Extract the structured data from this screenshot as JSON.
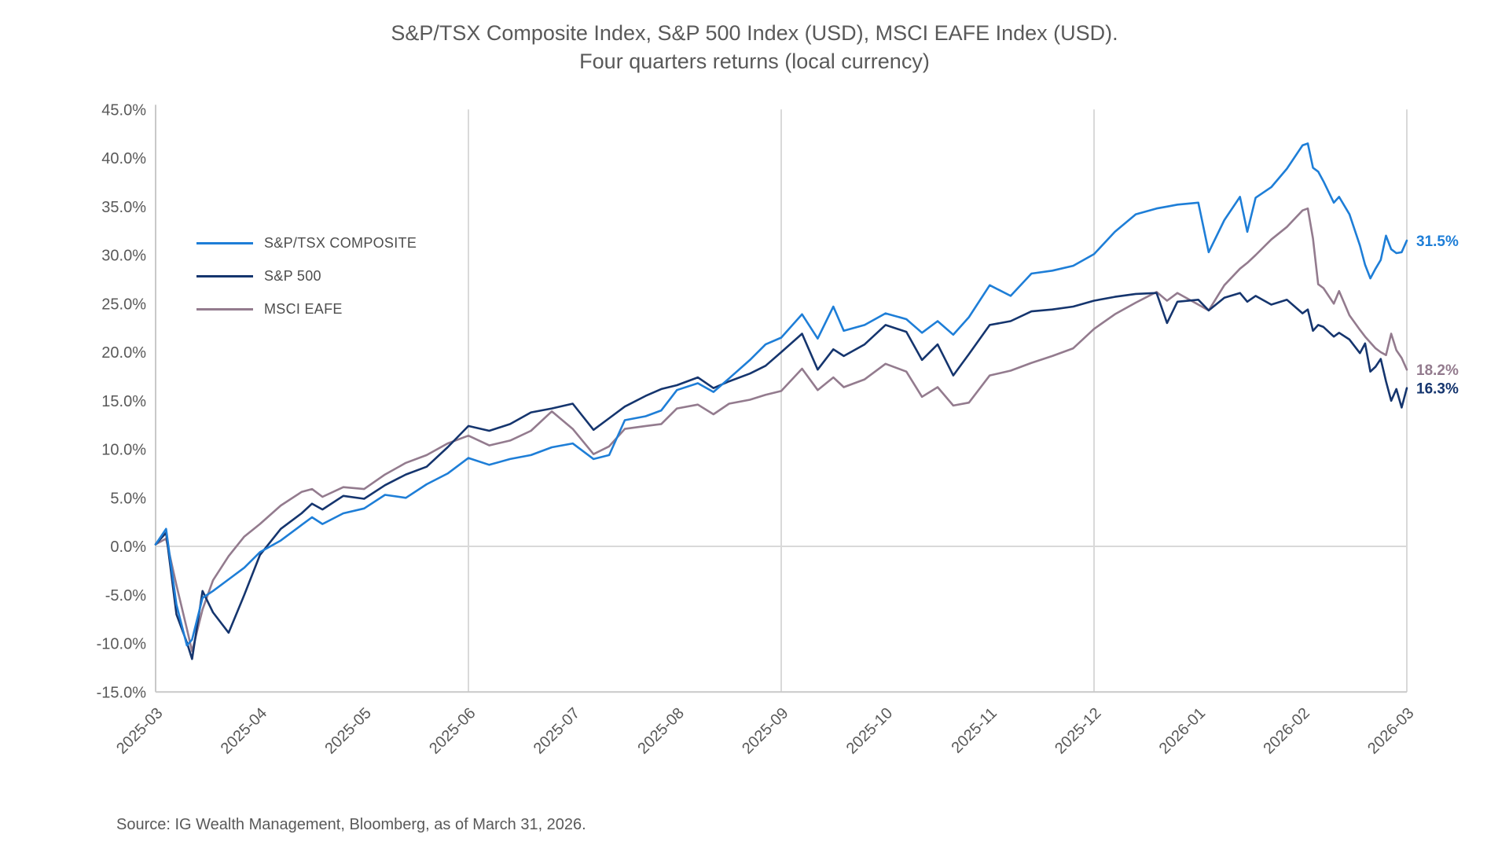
{
  "title": {
    "line1": "S&P/TSX Composite Index, S&P 500 Index (USD), MSCI EAFE Index (USD).",
    "line2": "Four quarters returns (local currency)"
  },
  "source": "Source: IG Wealth Management, Bloomberg, as of March 31, 2026.",
  "chart_data": {
    "type": "line",
    "title": "S&P/TSX Composite Index, S&P 500 Index (USD), MSCI EAFE Index (USD). Four quarters returns (local currency)",
    "x_unit": "months since 2025-03 month-end",
    "x_tick_labels": [
      "2025-03",
      "2025-04",
      "2025-05",
      "2025-06",
      "2025-07",
      "2025-08",
      "2025-09",
      "2025-10",
      "2025-11",
      "2025-12",
      "2026-01",
      "2026-02",
      "2026-03"
    ],
    "y_tick_labels": [
      "45.0%",
      "40.0%",
      "35.0%",
      "30.0%",
      "25.0%",
      "20.0%",
      "15.0%",
      "10.0%",
      "5.0%",
      "0.0%",
      "-5.0%",
      "-10.0%",
      "-15.0%"
    ],
    "ylim": [
      -15,
      45
    ],
    "y_step": 5,
    "grid": {
      "vertical_at_months": [
        3,
        6,
        9,
        12
      ],
      "horizontal_at": [
        0
      ]
    },
    "legend_position": "upper-left-inside",
    "axis_color": "#c9c9c9",
    "grid_color": "#d9d9d9",
    "label_color": "#595959",
    "x": [
      0,
      0.1,
      0.2,
      0.3,
      0.35,
      0.45,
      0.55,
      0.7,
      0.85,
      1.0,
      1.2,
      1.4,
      1.5,
      1.6,
      1.8,
      2.0,
      2.2,
      2.4,
      2.6,
      2.8,
      3.0,
      3.2,
      3.4,
      3.6,
      3.8,
      4.0,
      4.2,
      4.35,
      4.5,
      4.7,
      4.85,
      5.0,
      5.2,
      5.35,
      5.5,
      5.7,
      5.85,
      6.0,
      6.2,
      6.35,
      6.5,
      6.6,
      6.8,
      7.0,
      7.2,
      7.35,
      7.5,
      7.65,
      7.8,
      8.0,
      8.2,
      8.4,
      8.6,
      8.8,
      9.0,
      9.2,
      9.4,
      9.6,
      9.7,
      9.8,
      10.0,
      10.1,
      10.25,
      10.4,
      10.47,
      10.55,
      10.7,
      10.85,
      11.0,
      11.05,
      11.1,
      11.15,
      11.2,
      11.3,
      11.35,
      11.45,
      11.55,
      11.6,
      11.65,
      11.7,
      11.75,
      11.8,
      11.85,
      11.9,
      11.95,
      12.0
    ],
    "series": [
      {
        "name": "S&P/TSX COMPOSITE",
        "color": "#1e7ed7",
        "end_label": "31.5%",
        "final_value": 31.5,
        "values": [
          0.2,
          1.8,
          -6.0,
          -10.2,
          -9.6,
          -5.3,
          -4.6,
          -3.4,
          -2.2,
          -0.6,
          0.6,
          2.2,
          3.0,
          2.3,
          3.4,
          3.9,
          5.3,
          5.0,
          6.4,
          7.5,
          9.1,
          8.4,
          9.0,
          9.4,
          10.2,
          10.6,
          9.0,
          9.4,
          13.0,
          13.4,
          14.0,
          16.1,
          16.8,
          15.9,
          17.3,
          19.2,
          20.8,
          21.5,
          23.9,
          21.4,
          24.7,
          22.2,
          22.8,
          24.0,
          23.4,
          22.0,
          23.2,
          21.8,
          23.6,
          26.9,
          25.8,
          28.1,
          28.4,
          28.9,
          30.1,
          32.4,
          34.2,
          34.8,
          35.0,
          35.2,
          35.4,
          30.3,
          33.6,
          36.0,
          32.4,
          35.9,
          37.0,
          38.9,
          41.3,
          41.5,
          39.0,
          38.6,
          37.6,
          35.4,
          36.0,
          34.2,
          31.0,
          29.0,
          27.6,
          28.6,
          29.5,
          32.0,
          30.6,
          30.2,
          30.3,
          31.5
        ]
      },
      {
        "name": "S&P 500",
        "color": "#15356e",
        "end_label": "16.3%",
        "final_value": 16.3,
        "values": [
          0.2,
          1.4,
          -7.0,
          -9.9,
          -11.6,
          -4.6,
          -6.8,
          -8.9,
          -5.0,
          -0.9,
          1.8,
          3.4,
          4.4,
          3.8,
          5.2,
          4.9,
          6.3,
          7.4,
          8.2,
          10.2,
          12.4,
          11.9,
          12.6,
          13.8,
          14.2,
          14.7,
          12.0,
          13.2,
          14.4,
          15.5,
          16.2,
          16.6,
          17.4,
          16.3,
          17.0,
          17.8,
          18.6,
          20.0,
          21.9,
          18.2,
          20.3,
          19.6,
          20.8,
          22.8,
          22.1,
          19.2,
          20.8,
          17.6,
          19.8,
          22.8,
          23.2,
          24.2,
          24.4,
          24.7,
          25.3,
          25.7,
          26.0,
          26.1,
          23.0,
          25.2,
          25.4,
          24.3,
          25.6,
          26.1,
          25.2,
          25.8,
          24.9,
          25.4,
          24.0,
          24.4,
          22.2,
          22.8,
          22.6,
          21.6,
          22.0,
          21.3,
          19.9,
          20.9,
          18.0,
          18.5,
          19.3,
          17.0,
          15.0,
          16.2,
          14.3,
          16.3
        ]
      },
      {
        "name": "MSCI EAFE",
        "color": "#937b8e",
        "end_label": "18.2%",
        "final_value": 18.2,
        "values": [
          0.2,
          0.8,
          -4.0,
          -8.5,
          -10.8,
          -6.5,
          -3.5,
          -1.0,
          1.0,
          2.3,
          4.2,
          5.6,
          5.9,
          5.1,
          6.1,
          5.9,
          7.4,
          8.6,
          9.4,
          10.6,
          11.4,
          10.4,
          10.9,
          11.9,
          13.9,
          12.1,
          9.5,
          10.3,
          12.1,
          12.4,
          12.6,
          14.2,
          14.6,
          13.6,
          14.7,
          15.1,
          15.6,
          16.0,
          18.3,
          16.1,
          17.4,
          16.4,
          17.2,
          18.8,
          18.0,
          15.4,
          16.4,
          14.5,
          14.8,
          17.6,
          18.1,
          18.9,
          19.6,
          20.4,
          22.4,
          23.9,
          25.1,
          26.2,
          25.3,
          26.1,
          24.9,
          24.3,
          26.9,
          28.6,
          29.2,
          30.0,
          31.6,
          32.9,
          34.6,
          34.8,
          31.7,
          27.0,
          26.6,
          25.0,
          26.3,
          23.8,
          22.3,
          21.6,
          21.0,
          20.4,
          20.0,
          19.7,
          21.9,
          20.2,
          19.4,
          18.2
        ]
      }
    ]
  }
}
